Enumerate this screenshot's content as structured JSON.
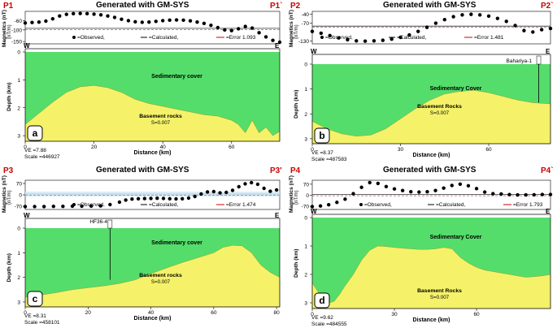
{
  "figure_generator": "Generated with GM-SYS",
  "chart_data": [
    {
      "panel": "a",
      "profile_start": "P1",
      "profile_end": "P1`",
      "title": "Generated with GM-SYS",
      "type": "line",
      "magnetics": {
        "ylabel": "Magnetics (nT)",
        "yunit": "(nT/m)",
        "yticks": [
          "-60",
          "-100",
          "-150"
        ],
        "ylim": [
          -160,
          -20
        ],
        "reference_line": -93,
        "observed": {
          "x": [
            0,
            2,
            4,
            6,
            8,
            10,
            12,
            14,
            16,
            18,
            20,
            22,
            24,
            26,
            28,
            30,
            32,
            34,
            36,
            38,
            40,
            42,
            44,
            46,
            48,
            50,
            52,
            54,
            56,
            58,
            60,
            62,
            64,
            66,
            68,
            70,
            72,
            74
          ],
          "y": [
            -70,
            -68,
            -66,
            -62,
            -52,
            -40,
            -33,
            -30,
            -29,
            -30,
            -32,
            -35,
            -40,
            -46,
            -54,
            -60,
            -65,
            -67,
            -66,
            -63,
            -60,
            -58,
            -57,
            -58,
            -61,
            -66,
            -72,
            -80,
            -90,
            -100,
            -103,
            -95,
            -85,
            -92,
            -112,
            -130,
            -145,
            -153
          ]
        },
        "legend": {
          "observed": "=Observed,",
          "calculated": "=Calculated,",
          "error": "=Error 1.093"
        }
      },
      "model": {
        "left_label": "W",
        "right_label": "E",
        "top_layer": "Sedimentary cover",
        "bottom_layer": "Basement rocks",
        "susceptibility": "S=0.007",
        "ylabel": "Depth (km)",
        "yticks": [
          "0",
          "1",
          "2",
          "3"
        ],
        "ylim": [
          0,
          3.2
        ],
        "basement_top": {
          "x": [
            0,
            4,
            8,
            12,
            16,
            20,
            24,
            28,
            32,
            36,
            40,
            44,
            48,
            52,
            56,
            60,
            62,
            64,
            66,
            68,
            70,
            72,
            74
          ],
          "depth": [
            2.6,
            2.2,
            1.8,
            1.45,
            1.25,
            1.2,
            1.28,
            1.45,
            1.7,
            1.85,
            1.95,
            2.05,
            2.15,
            2.25,
            2.3,
            2.45,
            2.6,
            2.9,
            2.45,
            2.9,
            2.7,
            3.0,
            2.85
          ]
        },
        "well": null
      },
      "xaxis": {
        "xlabel": "Distance (km)",
        "xticks": [
          "0",
          "20",
          "40",
          "60"
        ],
        "xlim": [
          0,
          74
        ]
      },
      "ve": "VE =7.88",
      "scale": "Scale =446927"
    },
    {
      "panel": "b",
      "profile_start": "P2",
      "profile_end": "P2`",
      "title": "Generated with GM-SYS",
      "type": "line",
      "magnetics": {
        "ylabel": "Magnetics (nT)",
        "yunit": "(nT/m)",
        "yticks": [
          "-40",
          "-70",
          "-130"
        ],
        "ylim": [
          -140,
          -30
        ],
        "reference_line": -80,
        "observed": {
          "x": [
            0,
            3,
            6,
            9,
            12,
            15,
            18,
            21,
            24,
            27,
            30,
            33,
            36,
            39,
            42,
            45,
            48,
            51,
            54,
            57,
            60,
            63,
            66,
            69,
            72,
            75,
            78,
            81
          ],
          "y": [
            -98,
            -104,
            -112,
            -120,
            -126,
            -130,
            -131,
            -130,
            -128,
            -124,
            -118,
            -110,
            -98,
            -84,
            -70,
            -58,
            -48,
            -42,
            -40,
            -42,
            -46,
            -54,
            -64,
            -78,
            -95,
            -100,
            -92,
            -88
          ]
        },
        "legend": {
          "observed": "=Observed,",
          "calculated": "=Calculated,",
          "error": "=Error 1.481"
        }
      },
      "model": {
        "left_label": "W",
        "right_label": "E",
        "top_layer": "Sedimentary Cover",
        "bottom_layer": "Basement Rocks",
        "susceptibility": "S=0.007",
        "ylabel": "Depth (km)",
        "yticks": [
          "0",
          "1",
          "2",
          "3"
        ],
        "ylim": [
          0,
          3.2
        ],
        "basement_top": {
          "x": [
            0,
            5,
            10,
            15,
            20,
            25,
            30,
            35,
            40,
            45,
            50,
            55,
            60,
            65,
            70,
            75,
            81
          ],
          "depth": [
            2.3,
            2.6,
            2.8,
            2.9,
            2.85,
            2.6,
            2.2,
            1.8,
            1.45,
            1.2,
            1.1,
            1.05,
            1.15,
            1.3,
            1.45,
            1.55,
            1.6
          ]
        },
        "well": {
          "label": "Bahariya-1",
          "x": 77,
          "depth": 1.55
        }
      },
      "xaxis": {
        "xlabel": "Distance (km)",
        "xticks": [
          "0",
          "30",
          "60"
        ],
        "xlim": [
          0,
          81
        ]
      },
      "ve": "VE =8.37",
      "scale": "Scale =487583"
    },
    {
      "panel": "c",
      "profile_start": "P3",
      "profile_end": "P3'",
      "title": "Generated with GM-SYS",
      "type": "line",
      "magnetics": {
        "ylabel": "Magnetics (nT)",
        "yunit": "(nT/m)",
        "yticks": [
          "70",
          "0",
          "-70"
        ],
        "ylim": [
          -90,
          90
        ],
        "reference_line": 5,
        "observed": {
          "x": [
            0,
            3,
            6,
            9,
            12,
            15,
            18,
            21,
            24,
            27,
            30,
            32,
            34,
            36,
            38,
            40,
            42,
            44,
            46,
            48,
            50,
            52,
            54,
            56,
            58,
            60,
            62,
            64,
            66,
            68,
            70,
            72,
            74,
            76,
            78,
            80
          ],
          "y": [
            -72,
            -72,
            -72,
            -71,
            -71,
            -70,
            -70,
            -69,
            -68,
            -60,
            -45,
            -32,
            -26,
            -24,
            -23,
            -22,
            -21,
            -22,
            -24,
            -25,
            -24,
            -20,
            -10,
            5,
            18,
            20,
            12,
            15,
            28,
            50,
            68,
            75,
            65,
            40,
            22,
            30
          ]
        },
        "legend": {
          "observed": "=Observed,",
          "calculated": "=Calculated,",
          "error": "=Error 1.474"
        }
      },
      "model": {
        "left_label": "W",
        "right_label": "E",
        "top_layer": "Sedimentary cover",
        "bottom_layer": "Basement rocks",
        "susceptibility": "S=0.007",
        "ylabel": "Depth (km)",
        "yticks": [
          "0",
          "1",
          "2",
          "3"
        ],
        "ylim": [
          0,
          3.2
        ],
        "basement_top": {
          "x": [
            0,
            5,
            10,
            15,
            20,
            25,
            30,
            35,
            40,
            45,
            50,
            55,
            60,
            63,
            66,
            69,
            72,
            75,
            78,
            81
          ],
          "depth": [
            2.8,
            2.72,
            2.62,
            2.5,
            2.42,
            2.35,
            2.25,
            2.1,
            1.85,
            1.62,
            1.4,
            1.2,
            1.0,
            0.78,
            0.7,
            0.72,
            1.0,
            1.5,
            1.8,
            2.0
          ]
        },
        "well": {
          "label": "HF36-4",
          "x": 27,
          "depth": 2.1
        }
      },
      "xaxis": {
        "xlabel": "Distance (km)",
        "xticks": [
          "0",
          "20",
          "40",
          "60",
          "80"
        ],
        "xlim": [
          0,
          81
        ]
      },
      "ve": "VE =8.31",
      "scale": "Scale =458101"
    },
    {
      "panel": "d",
      "profile_start": "P4",
      "profile_end": "P4`",
      "title": "Generated with GM-SYS",
      "type": "line",
      "magnetics": {
        "ylabel": "Magnetics (nT)",
        "yunit": "(nT/m)",
        "yticks": [
          "70",
          "0",
          "-70"
        ],
        "ylim": [
          -90,
          95
        ],
        "reference_line": 5,
        "observed": {
          "x": [
            0,
            3,
            6,
            9,
            12,
            15,
            18,
            21,
            24,
            27,
            30,
            33,
            36,
            39,
            42,
            45,
            48,
            51,
            54,
            57,
            60,
            63,
            66,
            69,
            72,
            75,
            78,
            81,
            84,
            87
          ],
          "y": [
            -72,
            -68,
            -60,
            -45,
            -25,
            10,
            50,
            80,
            75,
            55,
            40,
            30,
            22,
            20,
            22,
            30,
            45,
            62,
            70,
            60,
            42,
            20,
            10,
            8,
            4,
            2,
            2,
            3,
            5,
            5
          ]
        },
        "legend": {
          "observed": "=Observed,",
          "calculated": "=Calculated,",
          "error": "=Error 1.793"
        }
      },
      "model": {
        "left_label": "W",
        "right_label": "E",
        "top_layer": "Sedimentary Cover",
        "bottom_layer": "Basement Rocks",
        "susceptibility": "S=0.007",
        "ylabel": "Depth (km)",
        "yticks": [
          "0",
          "1",
          "2",
          "3"
        ],
        "ylim": [
          0,
          3.2
        ],
        "basement_top": {
          "x": [
            0,
            2,
            4,
            6,
            8,
            10,
            12,
            15,
            18,
            21,
            24,
            27,
            30,
            33,
            36,
            39,
            42,
            45,
            48,
            51,
            54,
            57,
            60,
            63,
            66,
            69,
            72,
            75,
            78,
            81,
            84,
            87
          ],
          "depth": [
            2.3,
            2.6,
            2.85,
            3.0,
            2.95,
            2.7,
            2.4,
            2.0,
            1.5,
            1.15,
            1.0,
            1.02,
            1.05,
            1.08,
            1.1,
            1.12,
            1.12,
            1.1,
            1.05,
            1.1,
            1.4,
            1.6,
            1.75,
            1.85,
            1.9,
            1.95,
            2.0,
            2.05,
            2.1,
            2.08,
            2.05,
            2.0
          ]
        },
        "well": null
      },
      "xaxis": {
        "xlabel": "Distance (km)",
        "xticks": [
          "0",
          "30",
          "60"
        ],
        "xlim": [
          0,
          87
        ]
      },
      "ve": "VE =9.62",
      "scale": "Scale =484555"
    }
  ]
}
